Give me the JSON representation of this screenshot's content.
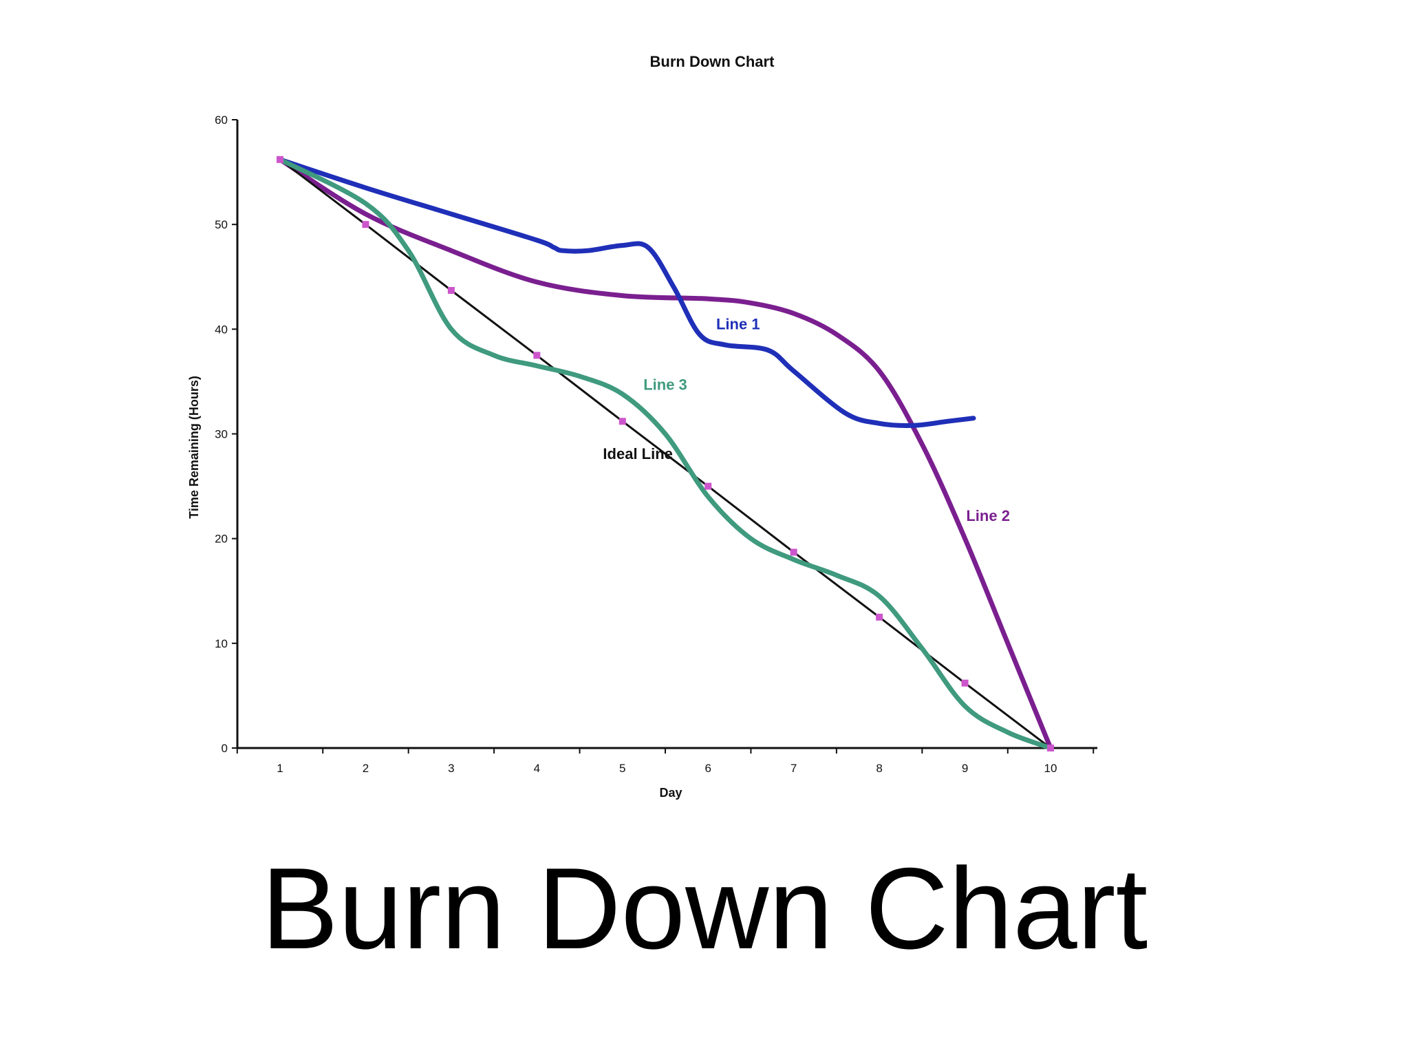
{
  "slide": {
    "title": "Burn Down Chart"
  },
  "chart_data": {
    "type": "line",
    "title": "Burn Down Chart",
    "xlabel": "Day",
    "ylabel": "Time Remaining (Hours)",
    "x": [
      1,
      2,
      3,
      4,
      5,
      6,
      7,
      8,
      9,
      10
    ],
    "xlim": [
      0.5,
      10.5
    ],
    "ylim": [
      0,
      60
    ],
    "yticks": [
      0,
      10,
      20,
      30,
      40,
      50,
      60
    ],
    "grid": false,
    "legend": "none",
    "series": [
      {
        "name": "Ideal Line",
        "color": "#111111",
        "markers": true,
        "marker_color": "#cc55cc",
        "x": [
          1,
          2,
          3,
          4,
          5,
          6,
          7,
          8,
          9,
          10
        ],
        "values": [
          56.2,
          50,
          43.7,
          37.5,
          31.2,
          25,
          18.7,
          12.5,
          6.2,
          0
        ]
      },
      {
        "name": "Line 1",
        "color": "#1f2fb8",
        "markers": false,
        "x": [
          1,
          2,
          3,
          4,
          4.2,
          4.3,
          4.6,
          5,
          5.3,
          5.6,
          5.9,
          6.2,
          6.7,
          7,
          7.6,
          8,
          8.4,
          8.8,
          9.1
        ],
        "values": [
          56.2,
          53.5,
          51,
          48.5,
          47.8,
          47.5,
          47.5,
          48,
          47.8,
          44,
          39.5,
          38.5,
          38,
          36,
          32,
          31,
          30.8,
          31.2,
          31.5
        ]
      },
      {
        "name": "Line 2",
        "color": "#7a1f8f",
        "markers": false,
        "x": [
          1,
          2,
          3,
          4,
          5,
          6,
          6.5,
          7,
          7.5,
          8,
          8.5,
          9,
          9.5,
          10
        ],
        "values": [
          56.2,
          51,
          47.5,
          44.5,
          43.2,
          42.9,
          42.5,
          41.5,
          39.5,
          36,
          29,
          20,
          10,
          0
        ]
      },
      {
        "name": "Line 3",
        "color": "#3f9a7e",
        "markers": false,
        "x": [
          1,
          2,
          2.5,
          3,
          3.5,
          4,
          4.5,
          5,
          5.5,
          6,
          6.5,
          7,
          7.5,
          8,
          8.5,
          9,
          9.5,
          10
        ],
        "values": [
          56.2,
          52,
          47.5,
          40,
          37.5,
          36.5,
          35.5,
          33.8,
          30,
          24,
          20,
          18,
          16.5,
          14.5,
          9.5,
          4,
          1.5,
          0
        ]
      }
    ],
    "annotations": [
      {
        "text": "Line 1",
        "color": "#1f2fb8",
        "x": 6.35,
        "y": 40
      },
      {
        "text": "Line 2",
        "color": "#7a1f8f",
        "x": 9.27,
        "y": 21.7
      },
      {
        "text": "Line 3",
        "color": "#3f9a7e",
        "x": 5.5,
        "y": 34.2
      },
      {
        "text": "Ideal Line",
        "color": "#111111",
        "x": 5.18,
        "y": 27.6
      }
    ]
  }
}
